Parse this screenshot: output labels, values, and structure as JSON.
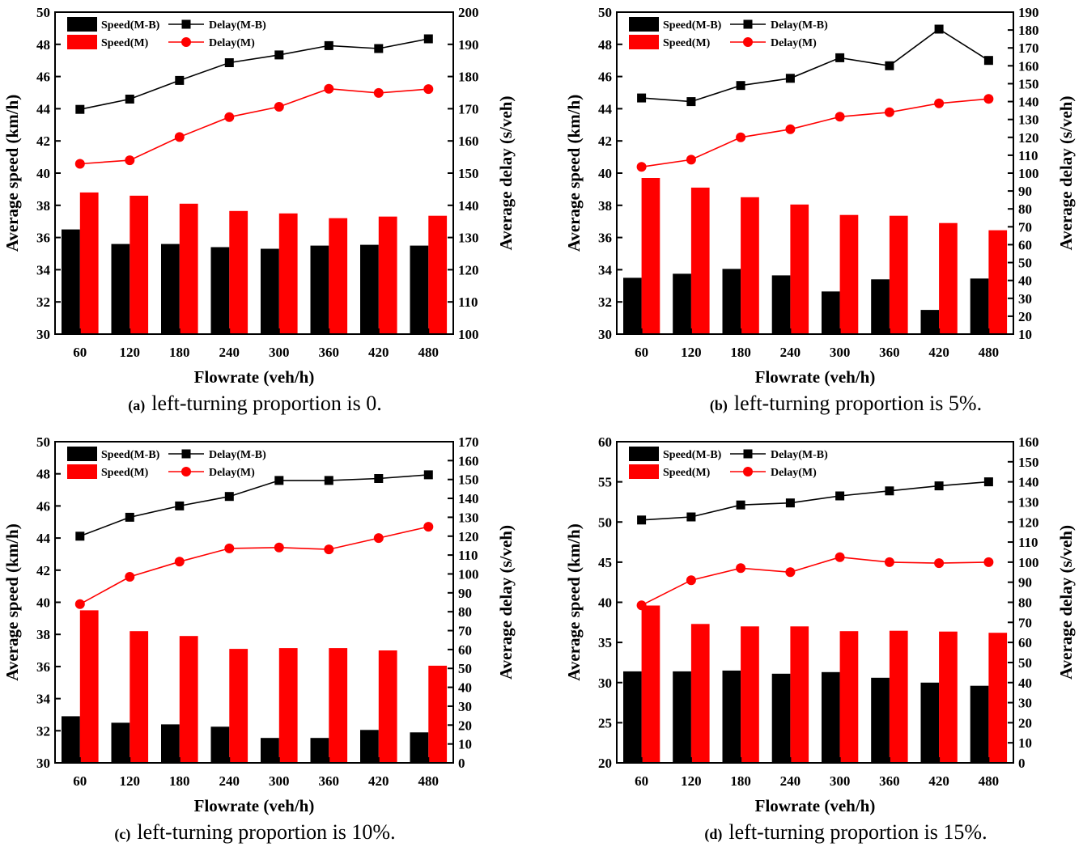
{
  "chart_data": [
    {
      "type": "bar",
      "categories": [
        "60",
        "120",
        "180",
        "240",
        "300",
        "360",
        "420",
        "480"
      ],
      "xlabel": "Flowrate (veh/h)",
      "ylabel": "Average speed (km/h)",
      "y2label": "Average delay (s/veh)",
      "ylim": [
        30,
        50
      ],
      "yticks": [
        "30",
        "32",
        "34",
        "36",
        "38",
        "40",
        "42",
        "44",
        "46",
        "48",
        "50"
      ],
      "y2lim": [
        100,
        200
      ],
      "y2ticks": [
        "100",
        "110",
        "120",
        "130",
        "140",
        "150",
        "160",
        "170",
        "180",
        "190",
        "200"
      ],
      "bar_series": [
        {
          "name": "Speed(M-B)",
          "color": "#000000",
          "values": [
            36.5,
            35.6,
            35.6,
            35.4,
            35.3,
            35.5,
            35.55,
            35.5
          ]
        },
        {
          "name": "Speed(M)",
          "color": "#ff0000",
          "values": [
            38.8,
            38.6,
            38.1,
            37.65,
            37.5,
            37.2,
            37.3,
            37.35
          ]
        }
      ],
      "line_series": [
        {
          "name": "Delay(M-B)",
          "color": "#000000",
          "marker": "square",
          "values": [
            169.8,
            173,
            178.8,
            184.3,
            186.7,
            189.6,
            188.7,
            191.7
          ]
        },
        {
          "name": "Delay(M)",
          "color": "#ff0000",
          "marker": "circle",
          "values": [
            152.9,
            154,
            161.2,
            167.4,
            170.6,
            176.2,
            174.9,
            176.1
          ]
        }
      ],
      "legend": "top-left",
      "caption_letter": "(a)",
      "caption": "left-turning proportion is 0."
    },
    {
      "type": "bar",
      "categories": [
        "60",
        "120",
        "180",
        "240",
        "300",
        "360",
        "420",
        "480"
      ],
      "xlabel": "Flowrate (veh/h)",
      "ylabel": "Average speed (km/h)",
      "y2label": "Average delay (s/veh)",
      "ylim": [
        30,
        50
      ],
      "yticks": [
        "30",
        "32",
        "34",
        "36",
        "38",
        "40",
        "42",
        "44",
        "46",
        "48",
        "50"
      ],
      "y2lim": [
        10,
        190
      ],
      "y2ticks": [
        "10",
        "20",
        "30",
        "40",
        "50",
        "60",
        "70",
        "80",
        "90",
        "100",
        "110",
        "120",
        "130",
        "140",
        "150",
        "160",
        "170",
        "180",
        "190"
      ],
      "bar_series": [
        {
          "name": "Speed(M-B)",
          "color": "#000000",
          "values": [
            33.5,
            33.75,
            34.05,
            33.65,
            32.65,
            33.4,
            31.5,
            33.45
          ]
        },
        {
          "name": "Speed(M)",
          "color": "#ff0000",
          "values": [
            39.7,
            39.1,
            38.5,
            38.05,
            37.4,
            37.35,
            36.9,
            36.45
          ]
        }
      ],
      "line_series": [
        {
          "name": "Delay(M-B)",
          "color": "#000000",
          "marker": "square",
          "values": [
            142,
            140,
            149,
            153,
            164.5,
            160,
            180.5,
            163
          ]
        },
        {
          "name": "Delay(M)",
          "color": "#ff0000",
          "marker": "circle",
          "values": [
            103.5,
            107.5,
            120,
            124.5,
            131.5,
            134,
            139,
            141.5
          ]
        }
      ],
      "legend": "top-left",
      "caption_letter": "(b)",
      "caption": "left-turning proportion is 5%."
    },
    {
      "type": "bar",
      "categories": [
        "60",
        "120",
        "180",
        "240",
        "300",
        "360",
        "420",
        "480"
      ],
      "xlabel": "Flowrate (veh/h)",
      "ylabel": "Average speed (km/h)",
      "y2label": "Average delay (s/veh)",
      "ylim": [
        30,
        50
      ],
      "yticks": [
        "30",
        "32",
        "34",
        "36",
        "38",
        "40",
        "42",
        "44",
        "46",
        "48",
        "50"
      ],
      "y2lim": [
        0,
        170
      ],
      "y2ticks": [
        "0",
        "10",
        "20",
        "30",
        "40",
        "50",
        "60",
        "70",
        "80",
        "90",
        "100",
        "110",
        "120",
        "130",
        "140",
        "150",
        "160",
        "170"
      ],
      "bar_series": [
        {
          "name": "Speed(M-B)",
          "color": "#000000",
          "values": [
            32.9,
            32.5,
            32.4,
            32.25,
            31.55,
            31.55,
            32.05,
            31.9
          ]
        },
        {
          "name": "Speed(M)",
          "color": "#ff0000",
          "values": [
            39.5,
            38.2,
            37.9,
            37.1,
            37.15,
            37.15,
            37.0,
            36.05
          ]
        }
      ],
      "line_series": [
        {
          "name": "Delay(M-B)",
          "color": "#000000",
          "marker": "square",
          "values": [
            120,
            130,
            136,
            141,
            149.5,
            149.5,
            150.5,
            152.5
          ]
        },
        {
          "name": "Delay(M)",
          "color": "#ff0000",
          "marker": "circle",
          "values": [
            84,
            98.5,
            106.5,
            113.5,
            114,
            113,
            119,
            125
          ]
        }
      ],
      "legend": "top-left",
      "caption_letter": "(c)",
      "caption": "left-turning proportion is 10%."
    },
    {
      "type": "bar",
      "categories": [
        "60",
        "120",
        "180",
        "240",
        "300",
        "360",
        "420",
        "480"
      ],
      "xlabel": "Flowrate (veh/h)",
      "ylabel": "Average speed (km/h)",
      "y2label": "Average delay (s/veh)",
      "ylim": [
        20,
        60
      ],
      "yticks": [
        "20",
        "25",
        "30",
        "35",
        "40",
        "45",
        "50",
        "55",
        "60"
      ],
      "y2lim": [
        0,
        160
      ],
      "y2ticks": [
        "0",
        "10",
        "20",
        "30",
        "40",
        "50",
        "60",
        "70",
        "80",
        "90",
        "100",
        "110",
        "120",
        "130",
        "140",
        "150",
        "160"
      ],
      "bar_series": [
        {
          "name": "Speed(M-B)",
          "color": "#000000",
          "values": [
            31.4,
            31.4,
            31.5,
            31.1,
            31.3,
            30.6,
            30.0,
            29.6
          ]
        },
        {
          "name": "Speed(M)",
          "color": "#ff0000",
          "values": [
            39.6,
            37.3,
            37.0,
            37.0,
            36.4,
            36.45,
            36.35,
            36.2
          ]
        }
      ],
      "line_series": [
        {
          "name": "Delay(M-B)",
          "color": "#000000",
          "marker": "square",
          "values": [
            121,
            122.5,
            128.5,
            129.5,
            133,
            135.5,
            138,
            140
          ]
        },
        {
          "name": "Delay(M)",
          "color": "#ff0000",
          "marker": "circle",
          "values": [
            78.5,
            91,
            97,
            95,
            102.5,
            100,
            99.5,
            100
          ]
        }
      ],
      "legend": "top-left",
      "caption_letter": "(d)",
      "caption": "left-turning proportion is 15%."
    }
  ]
}
